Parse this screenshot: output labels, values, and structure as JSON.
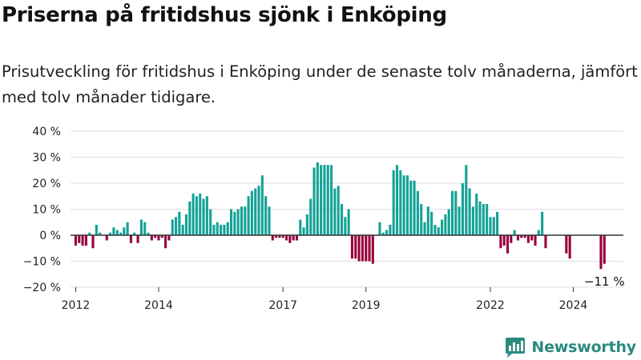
{
  "title": "Priserna på fritidshus sjönk i Enköping",
  "subtitle": "Prisutveckling för fritidshus i Enköping under de senaste tolv månaderna, jämfört med tolv månader tidigare.",
  "brand": {
    "name": "Newsworthy",
    "logo_icon": "newsworthy-bar-chart-icon",
    "color": "#2b8a80"
  },
  "chart_data": {
    "type": "bar",
    "ylim": [
      -20,
      40
    ],
    "yticks": [
      -20,
      -10,
      0,
      10,
      20,
      30,
      40
    ],
    "ytick_labels": [
      "−20 %",
      "−10 %",
      "0 %",
      "10 %",
      "20 %",
      "30 %",
      "40 %"
    ],
    "x_start": "2011-12",
    "x_end": "2025-03",
    "xtick_labels": [
      "2012",
      "2014",
      "2017",
      "2019",
      "2022",
      "2024"
    ],
    "xtick_dates": [
      "2012-01",
      "2014-01",
      "2017-01",
      "2019-01",
      "2022-01",
      "2024-01"
    ],
    "positive_color": "#13a296",
    "negative_color": "#99003d",
    "grid": true,
    "annotation": {
      "text": "−11 %",
      "date": "2024-10"
    },
    "values": [
      {
        "date": "2012-01",
        "value": -4
      },
      {
        "date": "2012-02",
        "value": -3
      },
      {
        "date": "2012-03",
        "value": -4
      },
      {
        "date": "2012-04",
        "value": -4
      },
      {
        "date": "2012-05",
        "value": 1
      },
      {
        "date": "2012-06",
        "value": -5
      },
      {
        "date": "2012-07",
        "value": 4
      },
      {
        "date": "2012-08",
        "value": 1
      },
      {
        "date": "2012-09",
        "value": 0
      },
      {
        "date": "2012-10",
        "value": -2
      },
      {
        "date": "2012-11",
        "value": 1
      },
      {
        "date": "2012-12",
        "value": 3
      },
      {
        "date": "2013-01",
        "value": 2
      },
      {
        "date": "2013-02",
        "value": 1
      },
      {
        "date": "2013-03",
        "value": 3
      },
      {
        "date": "2013-04",
        "value": 5
      },
      {
        "date": "2013-05",
        "value": -3
      },
      {
        "date": "2013-06",
        "value": 1
      },
      {
        "date": "2013-07",
        "value": -3
      },
      {
        "date": "2013-08",
        "value": 6
      },
      {
        "date": "2013-09",
        "value": 5
      },
      {
        "date": "2013-10",
        "value": 1
      },
      {
        "date": "2013-11",
        "value": -2
      },
      {
        "date": "2013-12",
        "value": -1
      },
      {
        "date": "2014-01",
        "value": -2
      },
      {
        "date": "2014-02",
        "value": -1
      },
      {
        "date": "2014-03",
        "value": -5
      },
      {
        "date": "2014-04",
        "value": -2
      },
      {
        "date": "2014-05",
        "value": 6
      },
      {
        "date": "2014-06",
        "value": 7
      },
      {
        "date": "2014-07",
        "value": 9
      },
      {
        "date": "2014-08",
        "value": 4
      },
      {
        "date": "2014-09",
        "value": 8
      },
      {
        "date": "2014-10",
        "value": 13
      },
      {
        "date": "2014-11",
        "value": 16
      },
      {
        "date": "2014-12",
        "value": 15
      },
      {
        "date": "2015-01",
        "value": 16
      },
      {
        "date": "2015-02",
        "value": 14
      },
      {
        "date": "2015-03",
        "value": 15
      },
      {
        "date": "2015-04",
        "value": 10
      },
      {
        "date": "2015-05",
        "value": 4
      },
      {
        "date": "2015-06",
        "value": 5
      },
      {
        "date": "2015-07",
        "value": 4
      },
      {
        "date": "2015-08",
        "value": 4
      },
      {
        "date": "2015-09",
        "value": 5
      },
      {
        "date": "2015-10",
        "value": 10
      },
      {
        "date": "2015-11",
        "value": 9
      },
      {
        "date": "2015-12",
        "value": 10
      },
      {
        "date": "2016-01",
        "value": 11
      },
      {
        "date": "2016-02",
        "value": 11
      },
      {
        "date": "2016-03",
        "value": 15
      },
      {
        "date": "2016-04",
        "value": 17
      },
      {
        "date": "2016-05",
        "value": 18
      },
      {
        "date": "2016-06",
        "value": 19
      },
      {
        "date": "2016-07",
        "value": 23
      },
      {
        "date": "2016-08",
        "value": 15
      },
      {
        "date": "2016-09",
        "value": 11
      },
      {
        "date": "2016-10",
        "value": -2
      },
      {
        "date": "2016-11",
        "value": -1
      },
      {
        "date": "2016-12",
        "value": -1
      },
      {
        "date": "2017-01",
        "value": -1
      },
      {
        "date": "2017-02",
        "value": -2
      },
      {
        "date": "2017-03",
        "value": -3
      },
      {
        "date": "2017-04",
        "value": -2
      },
      {
        "date": "2017-05",
        "value": -2
      },
      {
        "date": "2017-06",
        "value": 6
      },
      {
        "date": "2017-07",
        "value": 3
      },
      {
        "date": "2017-08",
        "value": 8
      },
      {
        "date": "2017-09",
        "value": 14
      },
      {
        "date": "2017-10",
        "value": 26
      },
      {
        "date": "2017-11",
        "value": 28
      },
      {
        "date": "2017-12",
        "value": 27
      },
      {
        "date": "2018-01",
        "value": 27
      },
      {
        "date": "2018-02",
        "value": 27
      },
      {
        "date": "2018-03",
        "value": 27
      },
      {
        "date": "2018-04",
        "value": 18
      },
      {
        "date": "2018-05",
        "value": 19
      },
      {
        "date": "2018-06",
        "value": 12
      },
      {
        "date": "2018-07",
        "value": 7
      },
      {
        "date": "2018-08",
        "value": 10
      },
      {
        "date": "2018-09",
        "value": -9
      },
      {
        "date": "2018-10",
        "value": -9
      },
      {
        "date": "2018-11",
        "value": -10
      },
      {
        "date": "2018-12",
        "value": -10
      },
      {
        "date": "2019-01",
        "value": -10
      },
      {
        "date": "2019-02",
        "value": -10
      },
      {
        "date": "2019-03",
        "value": -11
      },
      {
        "date": "2019-04",
        "value": 0
      },
      {
        "date": "2019-05",
        "value": 5
      },
      {
        "date": "2019-06",
        "value": 1
      },
      {
        "date": "2019-07",
        "value": 2
      },
      {
        "date": "2019-08",
        "value": 4
      },
      {
        "date": "2019-09",
        "value": 25
      },
      {
        "date": "2019-10",
        "value": 27
      },
      {
        "date": "2019-11",
        "value": 25
      },
      {
        "date": "2019-12",
        "value": 23
      },
      {
        "date": "2020-01",
        "value": 23
      },
      {
        "date": "2020-02",
        "value": 21
      },
      {
        "date": "2020-03",
        "value": 21
      },
      {
        "date": "2020-04",
        "value": 17
      },
      {
        "date": "2020-05",
        "value": 12
      },
      {
        "date": "2020-06",
        "value": 5
      },
      {
        "date": "2020-07",
        "value": 11
      },
      {
        "date": "2020-08",
        "value": 9
      },
      {
        "date": "2020-09",
        "value": 4
      },
      {
        "date": "2020-10",
        "value": 3
      },
      {
        "date": "2020-11",
        "value": 6
      },
      {
        "date": "2020-12",
        "value": 8
      },
      {
        "date": "2021-01",
        "value": 10
      },
      {
        "date": "2021-02",
        "value": 17
      },
      {
        "date": "2021-03",
        "value": 17
      },
      {
        "date": "2021-04",
        "value": 11
      },
      {
        "date": "2021-05",
        "value": 20
      },
      {
        "date": "2021-06",
        "value": 27
      },
      {
        "date": "2021-07",
        "value": 18
      },
      {
        "date": "2021-08",
        "value": 11
      },
      {
        "date": "2021-09",
        "value": 16
      },
      {
        "date": "2021-10",
        "value": 13
      },
      {
        "date": "2021-11",
        "value": 12
      },
      {
        "date": "2021-12",
        "value": 12
      },
      {
        "date": "2022-01",
        "value": 7
      },
      {
        "date": "2022-02",
        "value": 7
      },
      {
        "date": "2022-03",
        "value": 9
      },
      {
        "date": "2022-04",
        "value": -5
      },
      {
        "date": "2022-05",
        "value": -4
      },
      {
        "date": "2022-06",
        "value": -7
      },
      {
        "date": "2022-07",
        "value": -3
      },
      {
        "date": "2022-08",
        "value": 2
      },
      {
        "date": "2022-09",
        "value": -2
      },
      {
        "date": "2022-10",
        "value": -1
      },
      {
        "date": "2022-11",
        "value": -1
      },
      {
        "date": "2022-12",
        "value": -3
      },
      {
        "date": "2023-01",
        "value": -2
      },
      {
        "date": "2023-02",
        "value": -4
      },
      {
        "date": "2023-03",
        "value": 2
      },
      {
        "date": "2023-04",
        "value": 9
      },
      {
        "date": "2023-05",
        "value": -5
      },
      {
        "date": "2023-11",
        "value": -7
      },
      {
        "date": "2023-12",
        "value": -9
      },
      {
        "date": "2024-09",
        "value": -13
      },
      {
        "date": "2024-10",
        "value": -11
      }
    ]
  }
}
